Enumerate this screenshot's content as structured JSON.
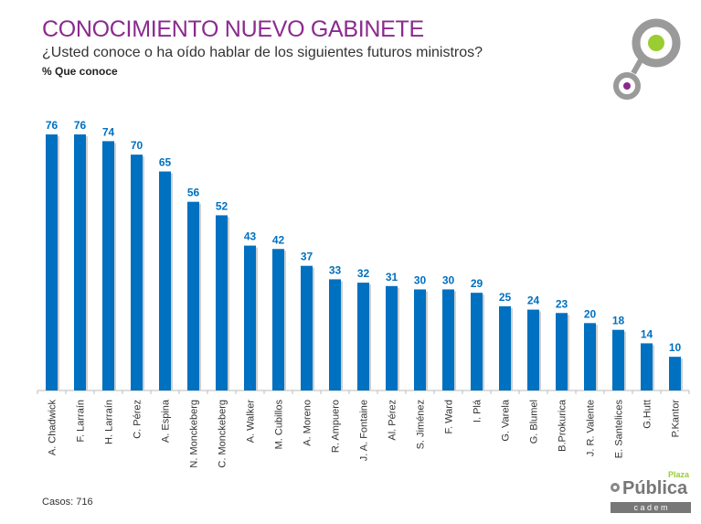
{
  "header": {
    "title": "CONOCIMIENTO NUEVO GABINETE",
    "subtitle": "¿Usted conoce o ha oído hablar de los siguientes futuros ministros?",
    "unit_label": "% Que conoce"
  },
  "footer": {
    "cases": "Casos: 716"
  },
  "logo": {
    "text": "Pública",
    "small": "Plaza",
    "bar": "c a d e m"
  },
  "colors": {
    "bar": "#0070c0",
    "label": "#0070c0",
    "title": "#8b2a8e",
    "logo_green": "#9acd32",
    "logo_purple": "#8b2a8e"
  },
  "chart_data": {
    "type": "bar",
    "categories": [
      "A. Chadwick",
      "F. Larraín",
      "H. Larraín",
      "C. Pérez",
      "A. Espina",
      "N. Monckeberg",
      "C. Monckeberg",
      "A. Walker",
      "M. Cubillos",
      "A. Moreno",
      "R. Ampuero",
      "J. A. Fontaine",
      "Al. Pérez",
      "S. Jiménez",
      "F. Ward",
      "I. Plá",
      "G. Varela",
      "G. Blumel",
      "B.Prokurica",
      "J. R. Valente",
      "E. Santelices",
      "G.Hutt",
      "P.Kantor"
    ],
    "values": [
      76,
      76,
      74,
      70,
      65,
      56,
      52,
      43,
      42,
      37,
      33,
      32,
      31,
      30,
      30,
      29,
      25,
      24,
      23,
      20,
      18,
      14,
      10
    ],
    "ylim": [
      0,
      80
    ],
    "grid": false,
    "data_labels": true
  }
}
